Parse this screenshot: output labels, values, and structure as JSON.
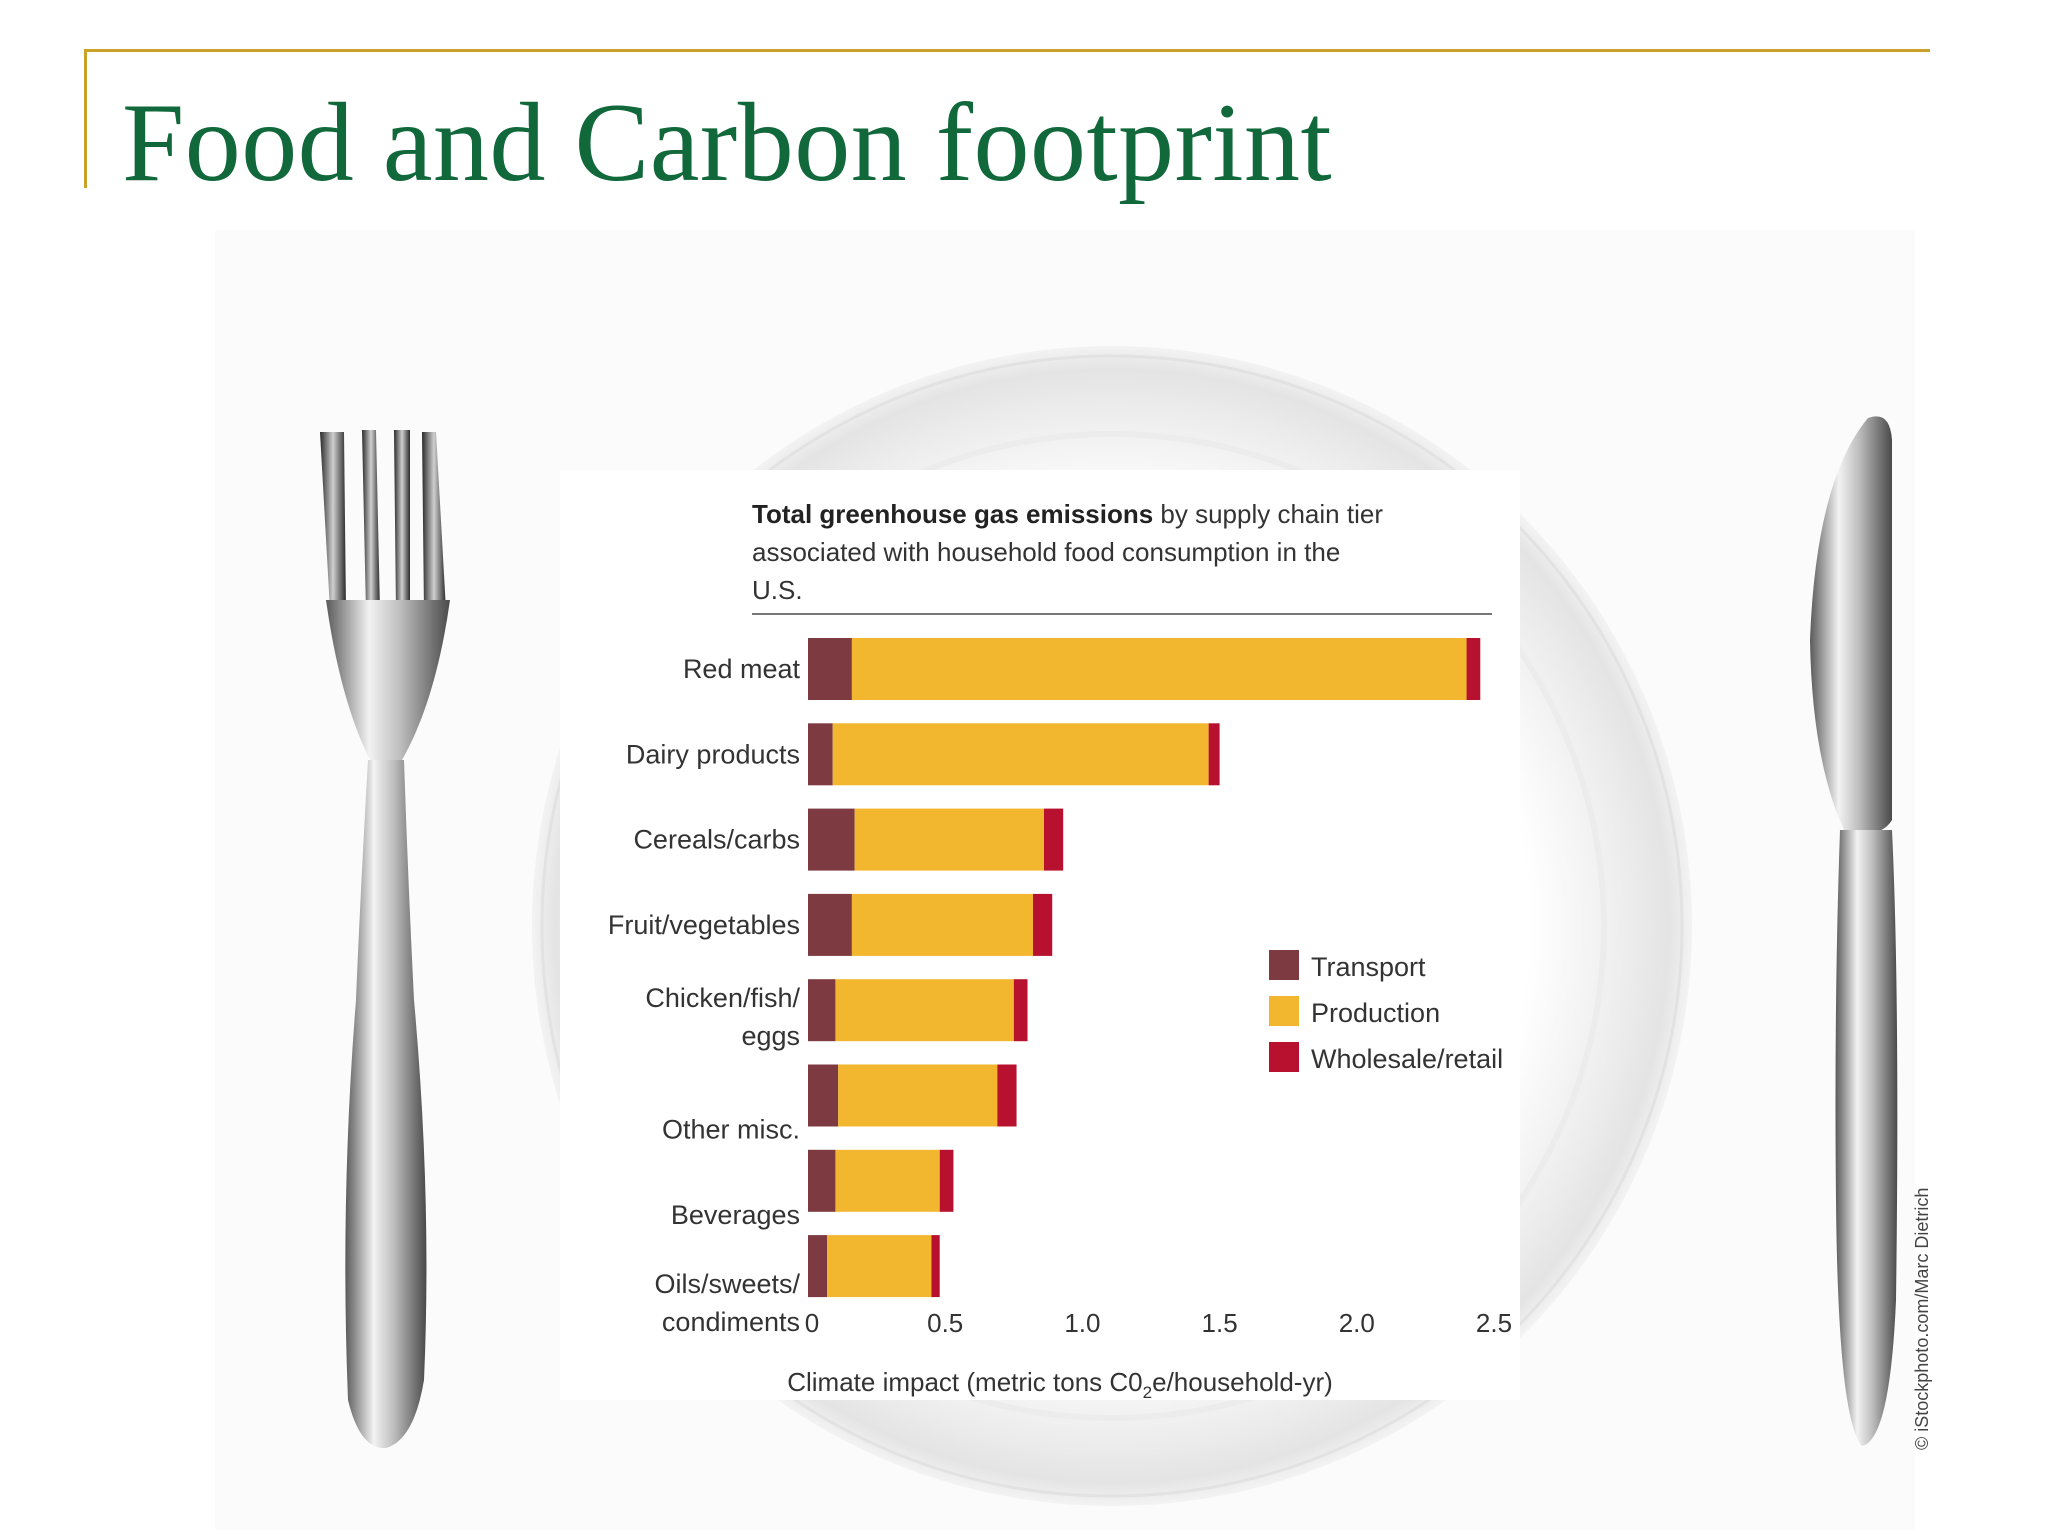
{
  "slide": {
    "title": "Food and Carbon footprint"
  },
  "chart_data": {
    "type": "bar",
    "orientation": "horizontal",
    "stacked": true,
    "title_bold": "Total greenhouse gas emissions",
    "title_rest_line1": " by supply chain tier",
    "title_line2": "associated with household food consumption in the",
    "title_line3": "U.S.",
    "xlabel": "Climate impact (metric tons C0",
    "xlabel_sub": "2",
    "xlabel_end": "e/household-yr)",
    "xlim": [
      0,
      2.5
    ],
    "xticks": [
      "0",
      "0.5",
      "1.0",
      "1.5",
      "2.0",
      "2.5"
    ],
    "categories": [
      [
        "Red meat"
      ],
      [
        "Dairy products"
      ],
      [
        "Cereals/carbs"
      ],
      [
        "Fruit/vegetables"
      ],
      [
        "Chicken/fish/",
        "eggs"
      ],
      [
        "Other misc."
      ],
      [
        "Beverages"
      ],
      [
        "Oils/sweets/",
        "condiments"
      ]
    ],
    "series": [
      {
        "name": "Transport",
        "color": "#7d3a41",
        "values": [
          0.16,
          0.09,
          0.17,
          0.16,
          0.1,
          0.11,
          0.1,
          0.07
        ]
      },
      {
        "name": "Production",
        "color": "#f2b72e",
        "values": [
          2.24,
          1.37,
          0.69,
          0.66,
          0.65,
          0.58,
          0.38,
          0.38
        ]
      },
      {
        "name": "Wholesale/retail",
        "color": "#b8112f",
        "values": [
          0.05,
          0.04,
          0.07,
          0.07,
          0.05,
          0.07,
          0.05,
          0.03
        ]
      }
    ],
    "legend_position": "right"
  },
  "credit": "© iStockphoto.com/Marc Dietrich",
  "icons": {
    "fork": "fork-icon",
    "knife": "knife-icon",
    "plate": "plate-icon"
  }
}
